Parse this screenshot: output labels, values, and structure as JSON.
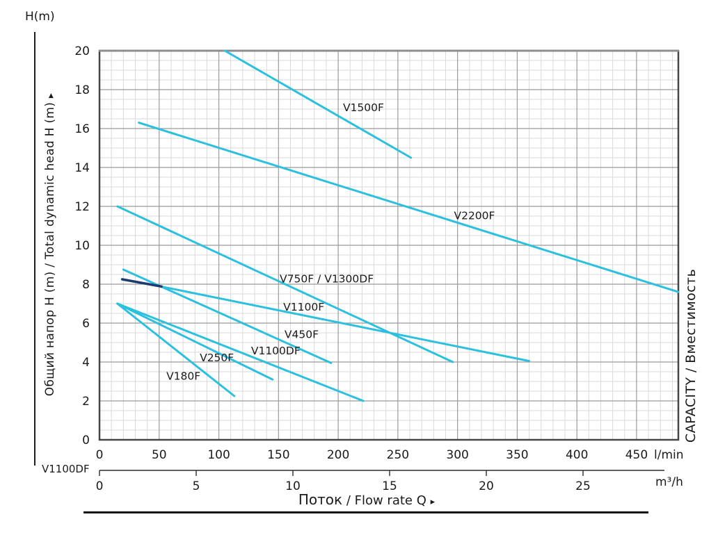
{
  "header": {
    "corner_label": "H(m)"
  },
  "axes": {
    "y_title_ru": "Общий напор H (m)",
    "y_title_sep": " / ",
    "y_title_en": "Total dynamic head H (m)",
    "y_title_arrow": "▸",
    "right_title": "CAPACITY / Вместимость",
    "x_title_ru": "Поток",
    "x_title_sep": " / ",
    "x_title_en": "Flow rate Q",
    "x_title_arrow": "▸",
    "unit_primary": "l/min",
    "unit_secondary": "m³/h",
    "bottom_left_note": "V1100DF"
  },
  "chart_data": {
    "type": "line",
    "title": "",
    "xlabel": "Поток / Flow rate Q",
    "ylabel": "Общий напор H (m) / Total dynamic head H (m)",
    "x_unit": "l/min",
    "x_unit_secondary": "m³/h",
    "xlim": [
      0,
      485
    ],
    "ylim": [
      0,
      20
    ],
    "x_ticks": [
      0,
      50,
      100,
      150,
      200,
      250,
      300,
      350,
      400,
      450
    ],
    "x_ticks_secondary": [
      0,
      5,
      10,
      15,
      20,
      25
    ],
    "y_ticks": [
      0,
      2,
      4,
      6,
      8,
      10,
      12,
      14,
      16,
      18,
      20
    ],
    "grid": {
      "grid_on": true,
      "x_minor_step": 10,
      "x_major_step": 50,
      "y_minor_step": 0.5,
      "y_major_step": 2
    },
    "legend_position": "inline-labels",
    "colors": {
      "curve": "#2cc0df",
      "dark_segment": "#1e3a6e",
      "grid_major": "#9b9b9b",
      "grid_minor": "#d9d9d9",
      "frame": "#454545",
      "frame_top": "#8d8d8d",
      "text": "#1a1a1a"
    },
    "series": [
      {
        "name": "V1500F",
        "points": [
          [
            105,
            20.0
          ],
          [
            261,
            14.5
          ]
        ],
        "label_at": [
          204,
          17.35
        ]
      },
      {
        "name": "V2200F",
        "points": [
          [
            33,
            16.3
          ],
          [
            485,
            7.6
          ]
        ],
        "label_at": [
          297,
          11.8
        ]
      },
      {
        "name": "V750F / V1300DF",
        "points": [
          [
            15,
            12.0
          ],
          [
            296,
            4.0
          ]
        ],
        "label_at": [
          151,
          8.55
        ]
      },
      {
        "name": "V1100F",
        "points": [
          [
            50,
            7.9
          ],
          [
            360,
            4.05
          ]
        ],
        "label_at": [
          154,
          7.1
        ]
      },
      {
        "name": "V450F",
        "points": [
          [
            20,
            8.75
          ],
          [
            194,
            3.95
          ]
        ],
        "label_at": [
          155,
          5.7
        ]
      },
      {
        "name": "V1100DF",
        "points": [
          [
            15,
            7.0
          ],
          [
            221,
            2.0
          ]
        ],
        "label_at": [
          127,
          4.85
        ]
      },
      {
        "name": "V250F",
        "points": [
          [
            15,
            7.0
          ],
          [
            145,
            3.1
          ]
        ],
        "label_at": [
          84,
          4.5
        ]
      },
      {
        "name": "V180F",
        "points": [
          [
            15,
            7.0
          ],
          [
            113,
            2.25
          ]
        ],
        "label_at": [
          56,
          3.55
        ]
      }
    ],
    "extra_segments": [
      {
        "name": "V1100DF-dark-segment",
        "points": [
          [
            19,
            8.25
          ],
          [
            52,
            7.88
          ]
        ]
      }
    ]
  }
}
